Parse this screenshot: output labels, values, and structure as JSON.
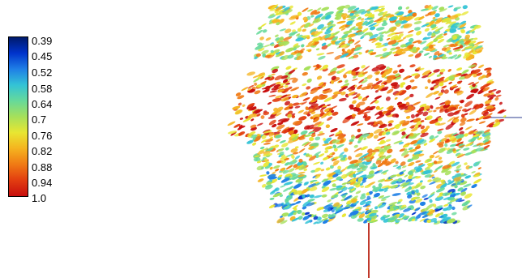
{
  "legend": {
    "labels": [
      "0.39",
      "0.45",
      "0.52",
      "0.58",
      "0.64",
      "0.7",
      "0.76",
      "0.82",
      "0.88",
      "0.94",
      "1.0"
    ],
    "gradient": [
      "#001a6b",
      "#0033cc",
      "#1f7fe6",
      "#33c3d6",
      "#66d99a",
      "#a6e05a",
      "#e8e632",
      "#f5b31f",
      "#f07a14",
      "#e23d10",
      "#c80e0e"
    ]
  },
  "render": {
    "subject": "isosurface-volume-rendering"
  }
}
